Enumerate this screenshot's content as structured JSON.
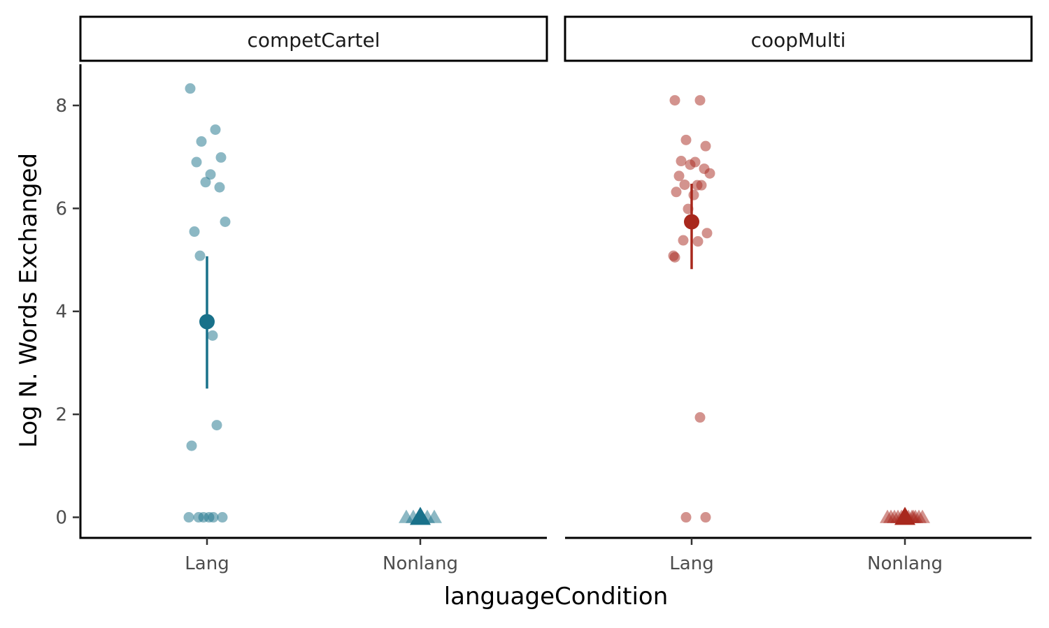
{
  "chart_data": {
    "type": "scatter",
    "xlabel": "languageCondition",
    "ylabel": "Log N. Words Exchanged",
    "ylim": [
      -0.4,
      8.8
    ],
    "yticks": [
      0,
      2,
      4,
      6,
      8
    ],
    "categories": [
      "Lang",
      "Nonlang"
    ],
    "grid": false,
    "legend": "none",
    "panels": [
      {
        "name": "competCartel",
        "color": "#19718a",
        "points": [
          {
            "x": "Lang",
            "y": 8.33
          },
          {
            "x": "Lang",
            "y": 7.53
          },
          {
            "x": "Lang",
            "y": 7.3
          },
          {
            "x": "Lang",
            "y": 6.99
          },
          {
            "x": "Lang",
            "y": 6.9
          },
          {
            "x": "Lang",
            "y": 6.66
          },
          {
            "x": "Lang",
            "y": 6.51
          },
          {
            "x": "Lang",
            "y": 6.41
          },
          {
            "x": "Lang",
            "y": 5.74
          },
          {
            "x": "Lang",
            "y": 5.55
          },
          {
            "x": "Lang",
            "y": 5.08
          },
          {
            "x": "Lang",
            "y": 3.53
          },
          {
            "x": "Lang",
            "y": 1.79
          },
          {
            "x": "Lang",
            "y": 1.39
          },
          {
            "x": "Lang",
            "y": 0
          },
          {
            "x": "Lang",
            "y": 0
          },
          {
            "x": "Lang",
            "y": 0
          },
          {
            "x": "Lang",
            "y": 0
          },
          {
            "x": "Lang",
            "y": 0
          },
          {
            "x": "Lang",
            "y": 0
          },
          {
            "x": "Nonlang",
            "y": 0
          },
          {
            "x": "Nonlang",
            "y": 0
          },
          {
            "x": "Nonlang",
            "y": 0
          },
          {
            "x": "Nonlang",
            "y": 0
          },
          {
            "x": "Nonlang",
            "y": 0
          }
        ],
        "summary": [
          {
            "x": "Lang",
            "mean": 3.8,
            "lower": 2.5,
            "upper": 5.07,
            "shape": "circle"
          },
          {
            "x": "Nonlang",
            "mean": 0.0,
            "lower": 0.0,
            "upper": 0.0,
            "shape": "triangle"
          }
        ]
      },
      {
        "name": "coopMulti",
        "color": "#a8281d",
        "points": [
          {
            "x": "Lang",
            "y": 8.1
          },
          {
            "x": "Lang",
            "y": 8.1
          },
          {
            "x": "Lang",
            "y": 7.33
          },
          {
            "x": "Lang",
            "y": 7.21
          },
          {
            "x": "Lang",
            "y": 6.92
          },
          {
            "x": "Lang",
            "y": 6.9
          },
          {
            "x": "Lang",
            "y": 6.85
          },
          {
            "x": "Lang",
            "y": 6.77
          },
          {
            "x": "Lang",
            "y": 6.68
          },
          {
            "x": "Lang",
            "y": 6.63
          },
          {
            "x": "Lang",
            "y": 6.46
          },
          {
            "x": "Lang",
            "y": 6.45
          },
          {
            "x": "Lang",
            "y": 6.45
          },
          {
            "x": "Lang",
            "y": 6.32
          },
          {
            "x": "Lang",
            "y": 6.26
          },
          {
            "x": "Lang",
            "y": 5.99
          },
          {
            "x": "Lang",
            "y": 5.52
          },
          {
            "x": "Lang",
            "y": 5.38
          },
          {
            "x": "Lang",
            "y": 5.36
          },
          {
            "x": "Lang",
            "y": 5.08
          },
          {
            "x": "Lang",
            "y": 5.05
          },
          {
            "x": "Lang",
            "y": 1.94
          },
          {
            "x": "Lang",
            "y": 0
          },
          {
            "x": "Lang",
            "y": 0
          },
          {
            "x": "Nonlang",
            "y": 0
          },
          {
            "x": "Nonlang",
            "y": 0
          },
          {
            "x": "Nonlang",
            "y": 0
          },
          {
            "x": "Nonlang",
            "y": 0
          },
          {
            "x": "Nonlang",
            "y": 0
          },
          {
            "x": "Nonlang",
            "y": 0
          },
          {
            "x": "Nonlang",
            "y": 0
          },
          {
            "x": "Nonlang",
            "y": 0
          },
          {
            "x": "Nonlang",
            "y": 0
          },
          {
            "x": "Nonlang",
            "y": 0
          },
          {
            "x": "Nonlang",
            "y": 0
          },
          {
            "x": "Nonlang",
            "y": 0
          }
        ],
        "summary": [
          {
            "x": "Lang",
            "mean": 5.74,
            "lower": 4.82,
            "upper": 6.48,
            "shape": "circle"
          },
          {
            "x": "Nonlang",
            "mean": 0.0,
            "lower": 0.0,
            "upper": 0.0,
            "shape": "triangle"
          }
        ]
      }
    ]
  }
}
